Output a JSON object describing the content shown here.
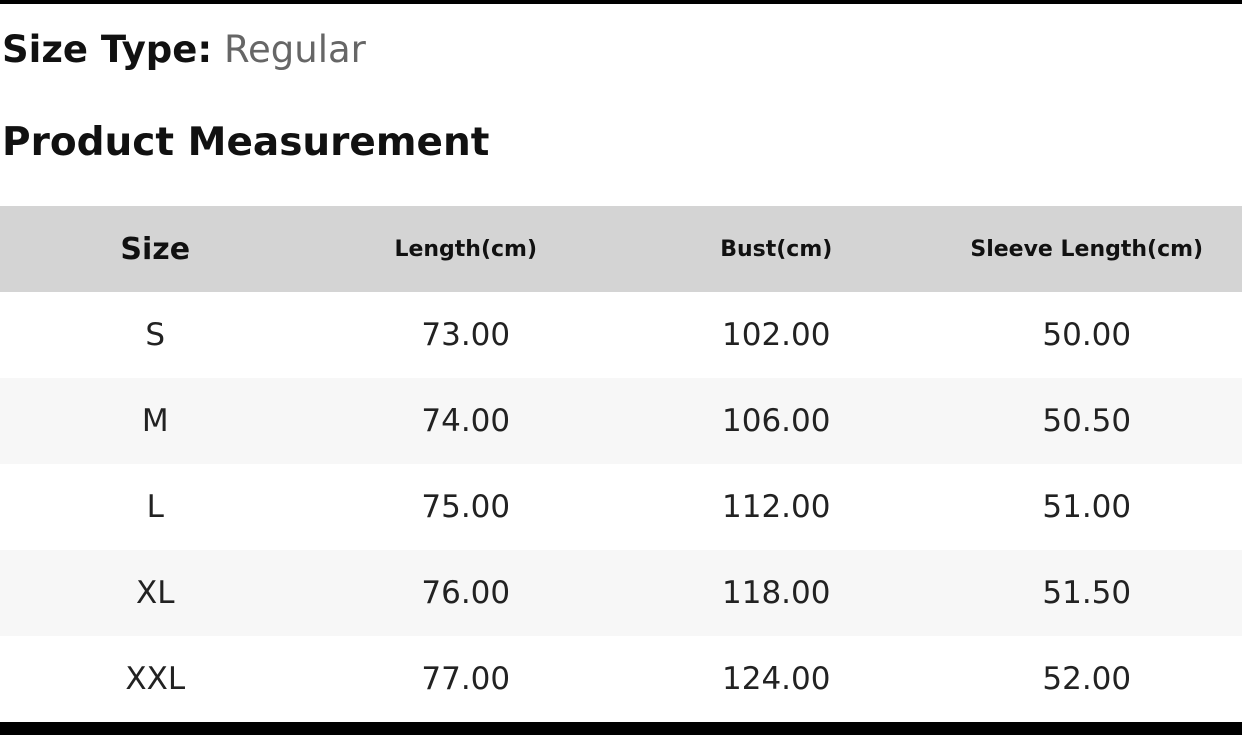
{
  "size_type": {
    "label": "Size Type:",
    "value": "Regular"
  },
  "section_title": "Product Measurement",
  "table": {
    "headers": [
      "Size",
      "Length(cm)",
      "Bust(cm)",
      "Sleeve Length(cm)"
    ],
    "rows": [
      [
        "S",
        "73.00",
        "102.00",
        "50.00"
      ],
      [
        "M",
        "74.00",
        "106.00",
        "50.50"
      ],
      [
        "L",
        "75.00",
        "112.00",
        "51.00"
      ],
      [
        "XL",
        "76.00",
        "118.00",
        "51.50"
      ],
      [
        "XXL",
        "77.00",
        "124.00",
        "52.00"
      ]
    ]
  }
}
